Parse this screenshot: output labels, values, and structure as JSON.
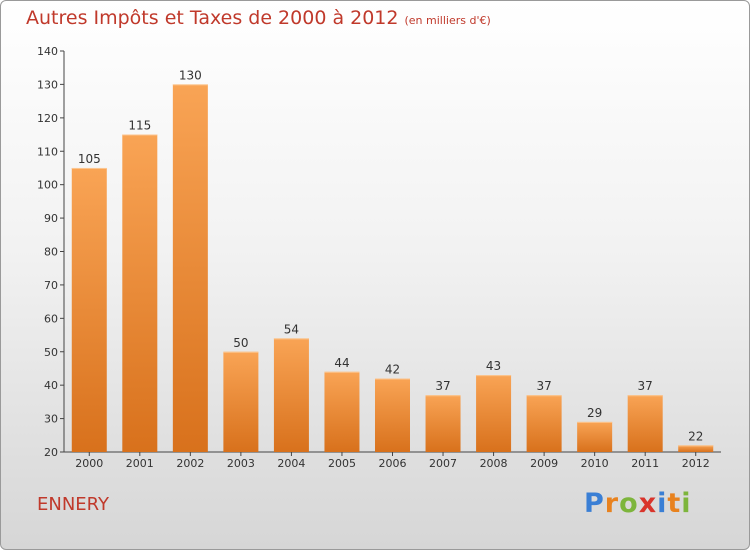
{
  "header": {
    "title": "Autres Impôts et Taxes de 2000 à 2012",
    "subtitle": "(en milliers d'€)"
  },
  "footer": {
    "town": "ENNERY",
    "logo": [
      "P",
      "r",
      "o",
      "x",
      "i",
      "t",
      "i"
    ]
  },
  "colors": {
    "title": "#c0392b",
    "bar_light": "#f9a455",
    "bar_dark": "#d8711c",
    "logo": [
      "#3a7fd5",
      "#e8821e",
      "#7db53c",
      "#d9342b",
      "#3a7fd5",
      "#e8821e",
      "#7db53c"
    ]
  },
  "chart_data": {
    "type": "bar",
    "categories": [
      "2000",
      "2001",
      "2002",
      "2003",
      "2004",
      "2005",
      "2006",
      "2007",
      "2008",
      "2009",
      "2010",
      "2011",
      "2012"
    ],
    "values": [
      105,
      115,
      130,
      50,
      54,
      44,
      42,
      37,
      43,
      37,
      29,
      37,
      22
    ],
    "ylim": [
      20,
      140
    ],
    "yticks": [
      20,
      30,
      40,
      50,
      60,
      70,
      80,
      90,
      100,
      110,
      120,
      130,
      140
    ],
    "grid": false,
    "legend": "none"
  }
}
